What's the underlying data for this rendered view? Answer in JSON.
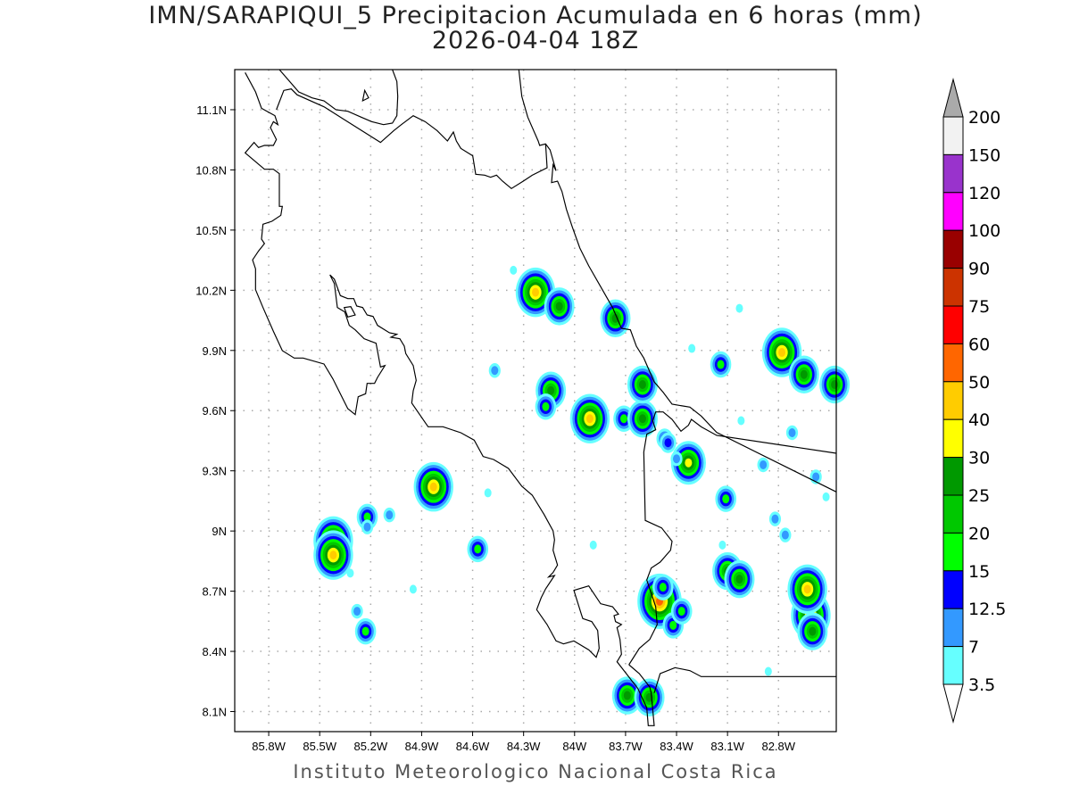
{
  "title": {
    "line1": "IMN/SARAPIQUI_5 Precipitacion Acumulada en 6 horas (mm)",
    "line2": "2026-04-04 18Z"
  },
  "footer": "Instituto Meteorologico Nacional Costa Rica",
  "axes": {
    "lat_labels": [
      "11.1N",
      "10.8N",
      "10.5N",
      "10.2N",
      "9.9N",
      "9.6N",
      "9.3N",
      "9N",
      "8.7N",
      "8.4N",
      "8.1N"
    ],
    "lat_values": [
      11.1,
      10.8,
      10.5,
      10.2,
      9.9,
      9.6,
      9.3,
      9.0,
      8.7,
      8.4,
      8.1
    ],
    "lon_labels": [
      "85.8W",
      "85.5W",
      "85.2W",
      "84.9W",
      "84.6W",
      "84.3W",
      "84W",
      "83.7W",
      "83.4W",
      "83.1W",
      "82.8W"
    ],
    "lon_values": [
      85.8,
      85.5,
      85.2,
      84.9,
      84.6,
      84.3,
      84.0,
      83.7,
      83.4,
      83.1,
      82.8
    ],
    "lon_range_W": [
      86.0,
      82.46
    ],
    "lat_range_N": [
      8.0,
      11.3
    ]
  },
  "colorbar": {
    "labels": [
      "200",
      "150",
      "120",
      "100",
      "90",
      "75",
      "60",
      "50",
      "40",
      "30",
      "25",
      "20",
      "15",
      "12.5",
      "7",
      "3.5"
    ],
    "colors_top_to_bottom": [
      "#f2f2f2",
      "#9933cc",
      "#ff00ff",
      "#990000",
      "#cc3300",
      "#ff0000",
      "#ff6600",
      "#ffcc00",
      "#ffff00",
      "#009900",
      "#00c800",
      "#00ff00",
      "#0000ff",
      "#3399ff",
      "#66ffff"
    ],
    "over_color": "#aaaaaa",
    "under_color": "#ffffff"
  },
  "precip_cells": [
    [
      84.23,
      10.19,
      40
    ],
    [
      84.09,
      10.12,
      25
    ],
    [
      83.76,
      10.06,
      25
    ],
    [
      82.78,
      9.89,
      40
    ],
    [
      82.65,
      9.78,
      25
    ],
    [
      82.47,
      9.73,
      25
    ],
    [
      83.14,
      9.83,
      15
    ],
    [
      84.14,
      9.7,
      25
    ],
    [
      84.17,
      9.62,
      15
    ],
    [
      83.91,
      9.56,
      40
    ],
    [
      83.71,
      9.56,
      15
    ],
    [
      83.6,
      9.56,
      25
    ],
    [
      83.6,
      9.73,
      25
    ],
    [
      83.47,
      9.46,
      12.5
    ],
    [
      83.33,
      9.34,
      30
    ],
    [
      84.83,
      9.22,
      40
    ],
    [
      85.42,
      8.95,
      40
    ],
    [
      85.42,
      8.88,
      40
    ],
    [
      85.22,
      9.07,
      15
    ],
    [
      85.22,
      9.02,
      7
    ],
    [
      84.57,
      8.91,
      15
    ],
    [
      83.5,
      8.65,
      50
    ],
    [
      83.48,
      8.72,
      15
    ],
    [
      83.42,
      8.53,
      15
    ],
    [
      83.37,
      8.6,
      15
    ],
    [
      83.1,
      8.8,
      25
    ],
    [
      83.03,
      8.76,
      25
    ],
    [
      82.61,
      8.58,
      40
    ],
    [
      82.63,
      8.71,
      40
    ],
    [
      82.6,
      8.5,
      25
    ],
    [
      83.69,
      8.18,
      25
    ],
    [
      83.56,
      8.17,
      25
    ],
    [
      85.28,
      8.6,
      7
    ],
    [
      85.23,
      8.5,
      15
    ],
    [
      84.47,
      9.8,
      7
    ],
    [
      83.31,
      9.91,
      3.5
    ],
    [
      83.02,
      9.55,
      3.5
    ],
    [
      82.89,
      9.33,
      7
    ],
    [
      85.09,
      9.08,
      7
    ],
    [
      83.89,
      8.93,
      3.5
    ],
    [
      84.36,
      10.3,
      3.5
    ],
    [
      83.03,
      10.11,
      3.5
    ],
    [
      82.72,
      9.49,
      7
    ],
    [
      82.52,
      9.17,
      3.5
    ],
    [
      82.86,
      8.3,
      3.5
    ],
    [
      84.95,
      8.71,
      3.5
    ],
    [
      83.45,
      9.44,
      12.5
    ],
    [
      83.11,
      9.16,
      15
    ],
    [
      82.58,
      9.27,
      7
    ],
    [
      82.82,
      9.06,
      7
    ],
    [
      82.76,
      8.98,
      7
    ],
    [
      84.51,
      9.19,
      3.5
    ],
    [
      85.32,
      8.79,
      3.5
    ],
    [
      83.13,
      8.93,
      3.5
    ],
    [
      83.4,
      9.36,
      7
    ]
  ]
}
